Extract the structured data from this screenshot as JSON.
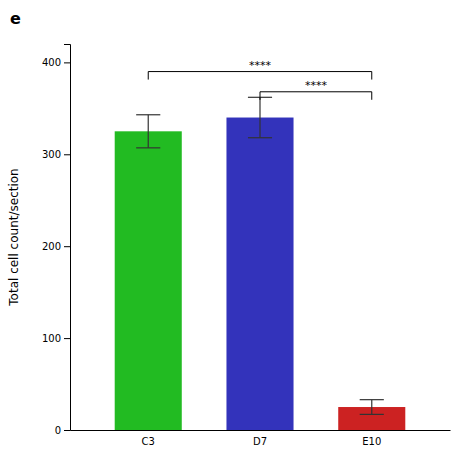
{
  "chart_data": {
    "type": "bar",
    "title": "e",
    "ylabel": "Total cell count/section",
    "categories": [
      "C3",
      "D7",
      "E10"
    ],
    "values": [
      325,
      340,
      25
    ],
    "errors": [
      18,
      22,
      8
    ],
    "colors": [
      "#22bb22",
      "#3333bb",
      "#cc2222"
    ],
    "ylim": [
      0,
      420
    ],
    "yticks": [
      0,
      100,
      200,
      300,
      400
    ],
    "grid": false,
    "annotations": [
      {
        "text": "****",
        "x1": "C3",
        "x2": "E10",
        "y": 390
      },
      {
        "text": "****",
        "x1": "D7",
        "x2": "E10",
        "y": 368
      }
    ]
  }
}
